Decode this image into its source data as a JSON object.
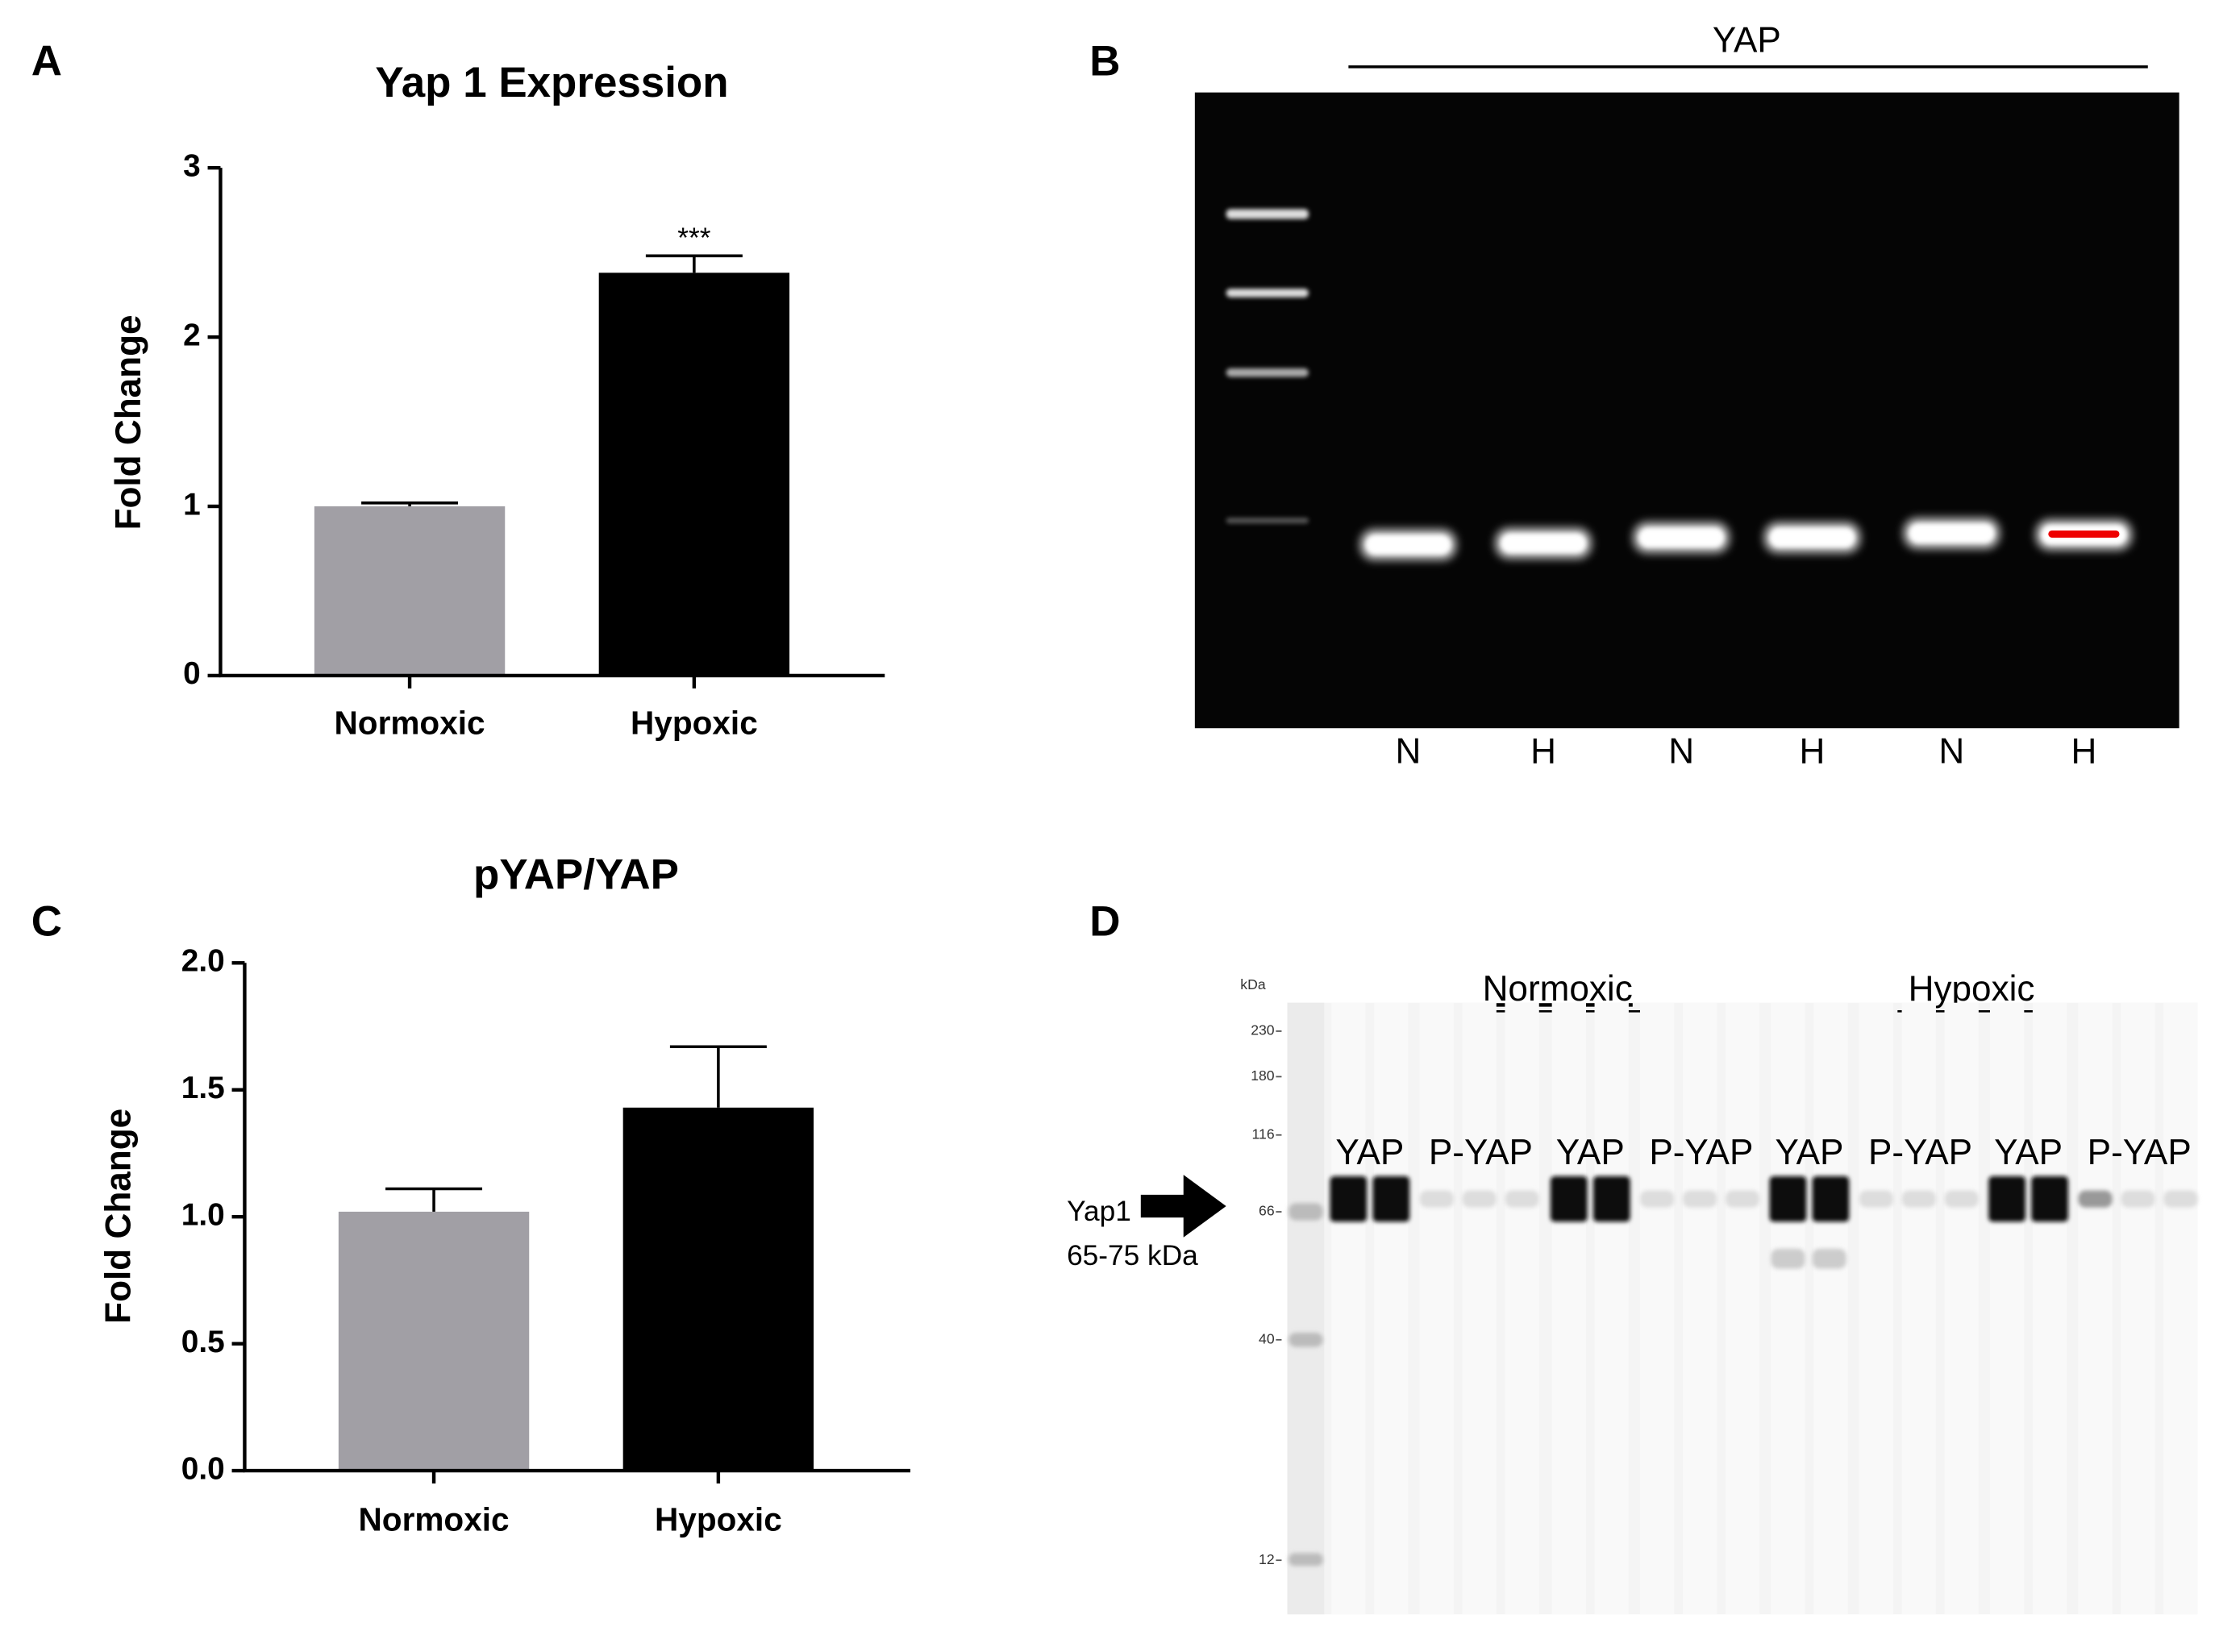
{
  "panel_labels": [
    "A",
    "B",
    "C",
    "D"
  ],
  "chart_data": [
    {
      "type": "bar",
      "title": "Yap 1 Expression",
      "y_label": "Fold Change",
      "categories": [
        "Normoxic",
        "Hypoxic"
      ],
      "values": [
        1.0,
        2.38
      ],
      "errors": [
        0.02,
        0.1
      ],
      "significance": [
        null,
        "***"
      ],
      "colors": [
        "#a19fa5",
        "#000000"
      ],
      "ylim": [
        0,
        3
      ],
      "yticks": [
        0,
        1,
        2,
        3
      ]
    },
    {
      "type": "bar",
      "title": "pYAP/YAP",
      "y_label": "Fold Change",
      "categories": [
        "Normoxic",
        "Hypoxic"
      ],
      "values": [
        1.02,
        1.43
      ],
      "errors": [
        0.09,
        0.24
      ],
      "significance": [
        null,
        null
      ],
      "colors": [
        "#a19fa5",
        "#000000"
      ],
      "ylim": [
        0,
        2
      ],
      "yticks": [
        {
          "value": 0,
          "label": "0.0"
        },
        0.5,
        {
          "value": 1,
          "label": "1.0"
        },
        1.5,
        {
          "value": 2,
          "label": "2.0"
        }
      ]
    }
  ],
  "gel_b": {
    "title": "YAP",
    "lanes": [
      "N",
      "H",
      "N",
      "H",
      "N",
      "H"
    ]
  },
  "blot_d": {
    "groups": [
      "Normoxic",
      "Hypoxic"
    ],
    "lanes": [
      "YAP",
      "P-YAP",
      "YAP",
      "P-YAP",
      "YAP",
      "P-YAP",
      "YAP",
      "P-YAP"
    ],
    "ladder_unit": "kDa",
    "ladder": [
      "230",
      "180",
      "116",
      "66",
      "40",
      "12"
    ],
    "marker_label": "Yap1",
    "marker_range": "65-75 kDa"
  }
}
